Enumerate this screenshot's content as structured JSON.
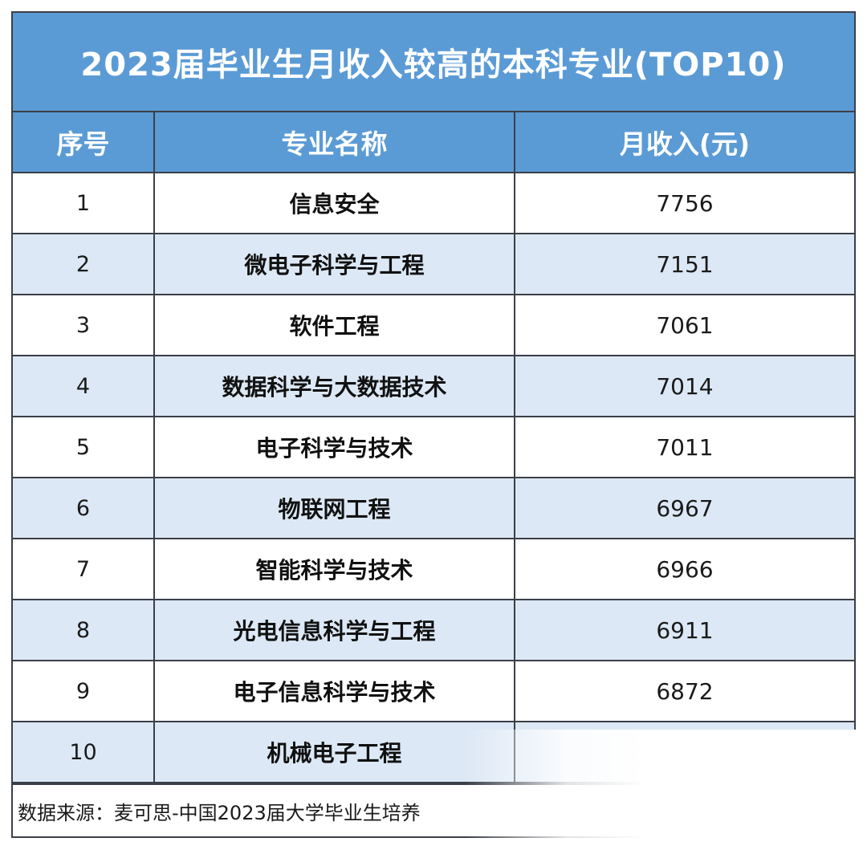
{
  "title": "2023届毕业生月收入较高的本科专业(TOP10)",
  "headers": {
    "index": "序号",
    "major": "专业名称",
    "income": "月收入(元)"
  },
  "rows": [
    {
      "index": "1",
      "major": "信息安全",
      "income": "7756"
    },
    {
      "index": "2",
      "major": "微电子科学与工程",
      "income": "7151"
    },
    {
      "index": "3",
      "major": "软件工程",
      "income": "7061"
    },
    {
      "index": "4",
      "major": "数据科学与大数据技术",
      "income": "7014"
    },
    {
      "index": "5",
      "major": "电子科学与技术",
      "income": "7011"
    },
    {
      "index": "6",
      "major": "物联网工程",
      "income": "6967"
    },
    {
      "index": "7",
      "major": "智能科学与技术",
      "income": "6966"
    },
    {
      "index": "8",
      "major": "光电信息科学与工程",
      "income": "6911"
    },
    {
      "index": "9",
      "major": "电子信息科学与技术",
      "income": "6872"
    },
    {
      "index": "10",
      "major": "机械电子工程",
      "income": ""
    }
  ],
  "source": "数据来源：麦可思-中国2023届大学毕业生培养",
  "colors": {
    "header_blue": "#5b9bd5",
    "stripe_blue": "#dce8f5",
    "border": "#3a3f48"
  }
}
